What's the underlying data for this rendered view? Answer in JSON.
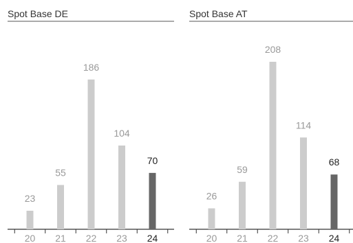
{
  "chart_data": [
    {
      "type": "bar",
      "title": "Spot Base DE",
      "categories": [
        "20",
        "21",
        "22",
        "23",
        "24"
      ],
      "values": [
        23,
        55,
        186,
        104,
        70
      ],
      "highlight_index": 4,
      "ylim": [
        0,
        208
      ],
      "grid": false,
      "colors": {
        "bar": "#cccccc",
        "highlight": "#666666",
        "label": "#999999",
        "highlight_label": "#222222"
      }
    },
    {
      "type": "bar",
      "title": "Spot Base AT",
      "categories": [
        "20",
        "21",
        "22",
        "23",
        "24"
      ],
      "values": [
        26,
        59,
        208,
        114,
        68
      ],
      "highlight_index": 4,
      "ylim": [
        0,
        208
      ],
      "grid": false,
      "colors": {
        "bar": "#cccccc",
        "highlight": "#666666",
        "label": "#999999",
        "highlight_label": "#222222"
      }
    }
  ]
}
